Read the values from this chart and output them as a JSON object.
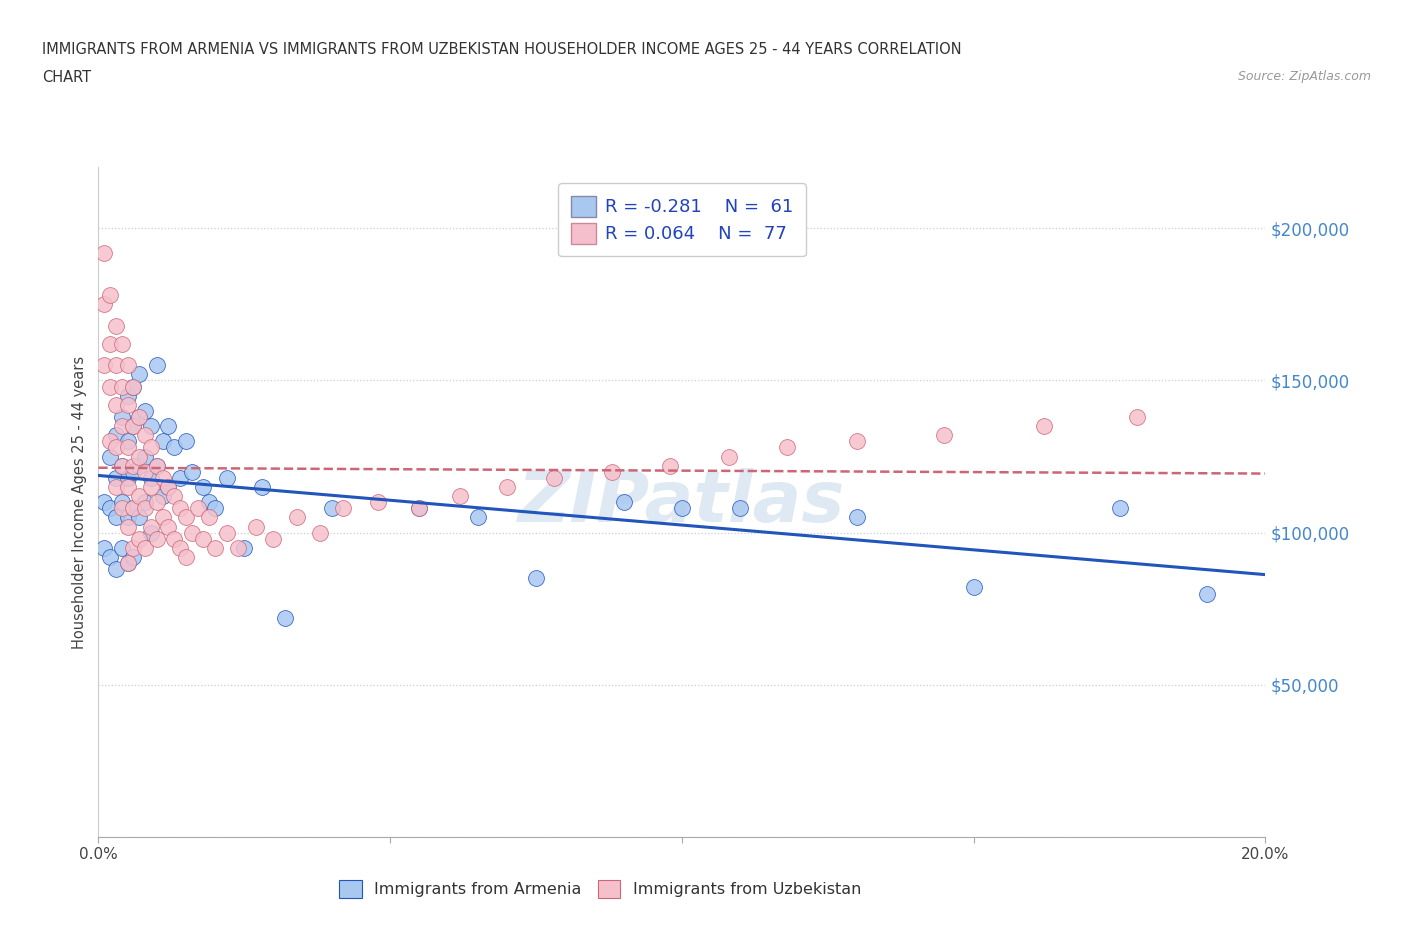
{
  "title_line1": "IMMIGRANTS FROM ARMENIA VS IMMIGRANTS FROM UZBEKISTAN HOUSEHOLDER INCOME AGES 25 - 44 YEARS CORRELATION",
  "title_line2": "CHART",
  "source": "Source: ZipAtlas.com",
  "ylabel": "Householder Income Ages 25 - 44 years",
  "xlim": [
    0.0,
    0.2
  ],
  "ylim": [
    0,
    220000
  ],
  "yticks": [
    0,
    50000,
    100000,
    150000,
    200000
  ],
  "ytick_labels": [
    "",
    "$50,000",
    "$100,000",
    "$150,000",
    "$200,000"
  ],
  "xticks": [
    0.0,
    0.05,
    0.1,
    0.15,
    0.2
  ],
  "xtick_labels": [
    "0.0%",
    "",
    "",
    "",
    "20.0%"
  ],
  "legend_R_armenia": "-0.281",
  "legend_N_armenia": "61",
  "legend_R_uzbekistan": "0.064",
  "legend_N_uzbekistan": "77",
  "color_armenia": "#a8c8f0",
  "color_uzbekistan": "#f5c0cc",
  "line_color_armenia": "#2255bb",
  "line_color_uzbekistan": "#cc6677",
  "grid_color": "#cccccc",
  "watermark": "ZIPatlas",
  "armenia_x": [
    0.001,
    0.001,
    0.002,
    0.002,
    0.002,
    0.003,
    0.003,
    0.003,
    0.003,
    0.004,
    0.004,
    0.004,
    0.004,
    0.005,
    0.005,
    0.005,
    0.005,
    0.005,
    0.006,
    0.006,
    0.006,
    0.006,
    0.006,
    0.007,
    0.007,
    0.007,
    0.007,
    0.008,
    0.008,
    0.008,
    0.009,
    0.009,
    0.009,
    0.01,
    0.01,
    0.011,
    0.011,
    0.012,
    0.012,
    0.013,
    0.014,
    0.015,
    0.016,
    0.018,
    0.019,
    0.02,
    0.022,
    0.025,
    0.028,
    0.032,
    0.04,
    0.055,
    0.065,
    0.075,
    0.09,
    0.1,
    0.11,
    0.13,
    0.15,
    0.175,
    0.19
  ],
  "armenia_y": [
    110000,
    95000,
    125000,
    108000,
    92000,
    132000,
    118000,
    105000,
    88000,
    138000,
    122000,
    110000,
    95000,
    145000,
    130000,
    118000,
    105000,
    90000,
    148000,
    135000,
    120000,
    108000,
    92000,
    152000,
    138000,
    122000,
    105000,
    140000,
    125000,
    110000,
    135000,
    118000,
    100000,
    155000,
    122000,
    130000,
    112000,
    135000,
    115000,
    128000,
    118000,
    130000,
    120000,
    115000,
    110000,
    108000,
    118000,
    95000,
    115000,
    72000,
    108000,
    108000,
    105000,
    85000,
    110000,
    108000,
    108000,
    105000,
    82000,
    108000,
    80000
  ],
  "uzbekistan_x": [
    0.001,
    0.001,
    0.001,
    0.002,
    0.002,
    0.002,
    0.002,
    0.003,
    0.003,
    0.003,
    0.003,
    0.003,
    0.004,
    0.004,
    0.004,
    0.004,
    0.004,
    0.005,
    0.005,
    0.005,
    0.005,
    0.005,
    0.005,
    0.006,
    0.006,
    0.006,
    0.006,
    0.006,
    0.007,
    0.007,
    0.007,
    0.007,
    0.008,
    0.008,
    0.008,
    0.008,
    0.009,
    0.009,
    0.009,
    0.01,
    0.01,
    0.01,
    0.011,
    0.011,
    0.012,
    0.012,
    0.013,
    0.013,
    0.014,
    0.014,
    0.015,
    0.015,
    0.016,
    0.017,
    0.018,
    0.019,
    0.02,
    0.022,
    0.024,
    0.027,
    0.03,
    0.034,
    0.038,
    0.042,
    0.048,
    0.055,
    0.062,
    0.07,
    0.078,
    0.088,
    0.098,
    0.108,
    0.118,
    0.13,
    0.145,
    0.162,
    0.178
  ],
  "uzbekistan_y": [
    192000,
    175000,
    155000,
    178000,
    162000,
    148000,
    130000,
    168000,
    155000,
    142000,
    128000,
    115000,
    162000,
    148000,
    135000,
    122000,
    108000,
    155000,
    142000,
    128000,
    115000,
    102000,
    90000,
    148000,
    135000,
    122000,
    108000,
    95000,
    138000,
    125000,
    112000,
    98000,
    132000,
    120000,
    108000,
    95000,
    128000,
    115000,
    102000,
    122000,
    110000,
    98000,
    118000,
    105000,
    115000,
    102000,
    112000,
    98000,
    108000,
    95000,
    105000,
    92000,
    100000,
    108000,
    98000,
    105000,
    95000,
    100000,
    95000,
    102000,
    98000,
    105000,
    100000,
    108000,
    110000,
    108000,
    112000,
    115000,
    118000,
    120000,
    122000,
    125000,
    128000,
    130000,
    132000,
    135000,
    138000
  ]
}
